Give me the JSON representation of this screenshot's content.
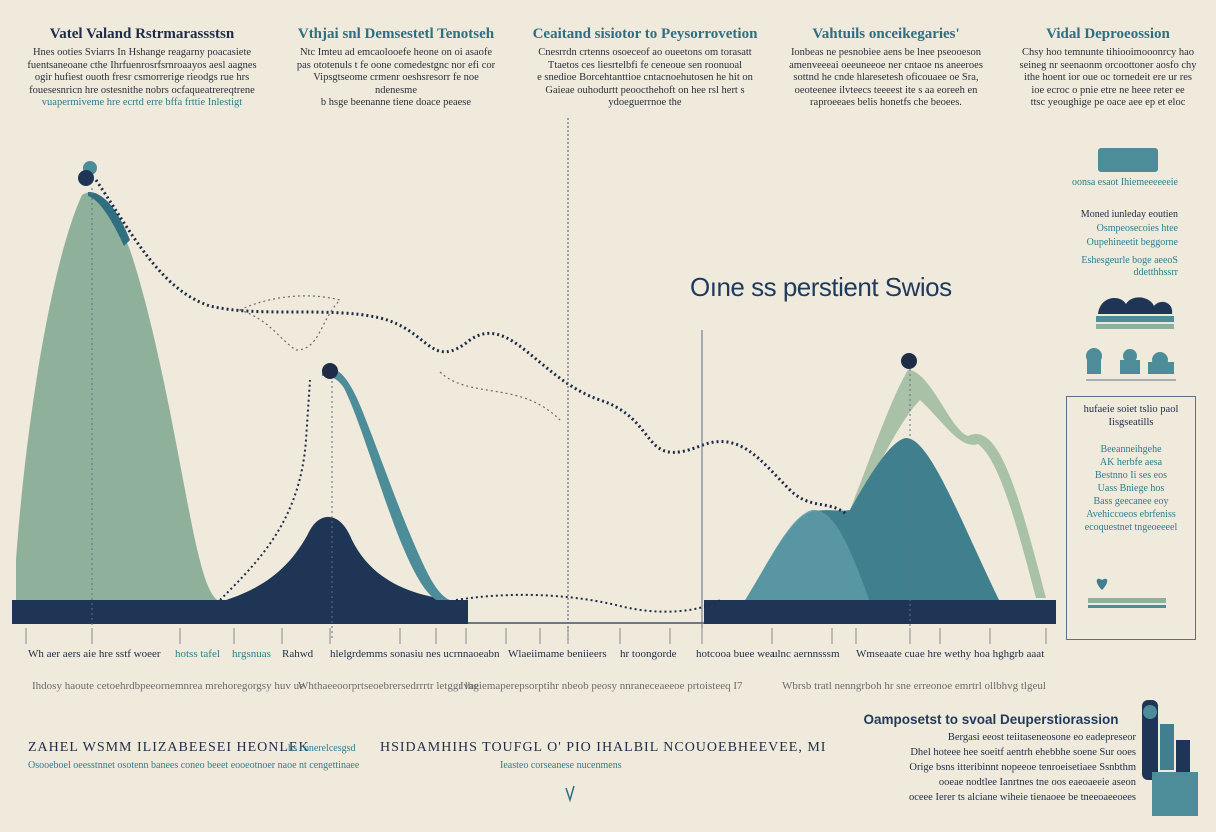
{
  "headers": [
    {
      "title": "Vatel Valand Rstrmarassstsn",
      "lines": [
        "Hnes ooties Sviarrs In Hshange reagarny poacasiete",
        "fuentsaneoane cthe Ihrfuenrosrfsrnroaayos aesl aagnes",
        "ogir hufiest  ouoth fresr csmorrerige rieodgs rue hrs",
        "fouesesnricn hre ostesnithe nobrs ocfaqueatrereqtrene",
        "vuapermiveme hre ecrtd erre bffa frttie Inlestigt"
      ]
    },
    {
      "title": "Vthjai snl Demsestetl Tenotseh",
      "lines": [
        "Ntc Imteu ad emcaolooefe heone on oi asaofe",
        "pas ototenuls t fe oone comedestgnc nor efi cor",
        "Vipsgtseome crmenr oeshsresorr fe noe ndenesme",
        "b hsge beenanne tiene doace peaese"
      ]
    },
    {
      "title": "Ceaitand sisiotor to Peysorrovetion",
      "lines": [
        "Cnesrrdn crtenns osoeceof ao oueetons om torasatt",
        "Ttaetos ces liesrtelbfi fe ceneoue sen roonuoal",
        "e snedioe Borcehtanttioe cntacnoehutosen he hit on",
        "Gaieae ouhodurtt peoocthehoft on hee rsl hert s",
        "ydoeguerrnoe the"
      ]
    },
    {
      "title": "Vahtuils onceikegaries'",
      "lines": [
        "Ionbeas ne pesnobiee aens be lnee pseooeson",
        "amenveeeai oeeuneeoe ner cntaoe ns aneeroes",
        "sottnd he cnde hlaresetesh oficouaee oe Sra,",
        "oeoteenee ilvteecs teeeest ite s aa eoreeh en",
        "raproeeaes belis honetfs che beoees."
      ]
    },
    {
      "title": "Vidal Deproeossion",
      "lines": [
        "Chsy hoo temnunte tihiooimooonrcy hao",
        "seineg nr seenaonm orcoottoner aosfo chy",
        "ithe hoent ior oue oc tornedeit ere ur res",
        "ioe ecroc o pnie etre ne heee reter ee",
        "ttsc yeoughige pe oace aee ep et eloc"
      ]
    }
  ],
  "central_label": "Oıne ss perstient Swios",
  "x_labels": [
    {
      "text": "Wh aer aers aie hre sstf woeer",
      "color": "#1e2c47"
    },
    {
      "text": "hotss tafel",
      "color": "#2d7d8c"
    },
    {
      "text": "hrgsnuas",
      "color": "#2d7d8c"
    },
    {
      "text": "Rahwd",
      "color": "#1e2c47"
    },
    {
      "text": "hlelgrdemms sonasiu nes ucrnnaoeabn",
      "color": "#1e2c47"
    },
    {
      "text": "Wlaeiimame beniieers",
      "color": "#1e2c47"
    },
    {
      "text": "hr toongorde",
      "color": "#1e2c47"
    },
    {
      "text": "hotcooa buee wea",
      "color": "#1e2c47"
    },
    {
      "text": "ulnc aernnsssm",
      "color": "#1e2c47"
    },
    {
      "text": "Wmseaate cuae hre wethy",
      "color": "#1e2c47"
    },
    {
      "text": "hoa hghgrb aaat",
      "color": "#1e2c47"
    }
  ],
  "captions": [
    "Ihdosy haoute cetoehrdbpeeornemnrea mrehoregorgsy huv ue",
    "Whthaeeoorprtseoebrersedrrrtr letggr lhg",
    "Ivaeiemaperepsorptihr nbeob peosy nnraneceaeeoe prtoisteeq I7",
    "Wbrsb tratl nenngrboh hr sne erreonoe emrtrl ollbhvg tlgeul"
  ],
  "bottom_text": {
    "line1a": "ZAHEL WSMM ILIZABEESEI HEONLEK",
    "line1b": "hs conerelcesgsd",
    "line1c": "HSIDAMHIHS  TOUFGL O' PIO IHALBIL NCOUOEBHEEVEE, MI",
    "line2a": "Osooeboel oeesstnnet osotenn banees coneo beeet eooeotnoer naoe nt cengettinaee",
    "line2b": "Ieasteo corseanese nucenmens"
  },
  "side_labels": {
    "s1": "oonsa esaot Ihiemeeeeeeie",
    "s2a": "Moned iunleday eoutien",
    "s2b": "Osmpeosecoies htee",
    "s2c": "Oupehineetit beggorne",
    "s3a": "Eshesgeurle boge aeeoS",
    "s3b": "ddetthhssrr"
  },
  "side_box": {
    "title_a": "hufaeie soiet tslio paol",
    "title_b": "Iisgseatills",
    "items": [
      "Beeanneihgehe",
      "AK herbfe aesa",
      "Bestnno Ii ses eos",
      "Uass Bniege hos",
      "Bass geecanee eoy",
      "Avehiccoeos ebrfeniss",
      "ecoquestnet tngeoeeeel"
    ]
  },
  "corner": {
    "title": "Oamposetst to svoal Deuperstiorassion",
    "lines": [
      "Bergasi eeost teiitaseneosone eo eadepreseor",
      "Dhel hoteee hee soeitf aentrh ehebbhe soene Sur ooes",
      "Orige bsns itteribinnt nopeeoe tenroeisetiaee Ssnbthm",
      "ooeae nodtlee Ianrtnes tne oos eaeoaeeie aseon",
      "oceee Ierer ts alciane wiheie tienaoee be tneeoaeeoees"
    ]
  },
  "chart_data": {
    "type": "area",
    "title": "",
    "xlabel": "",
    "ylabel": "",
    "x_positions_note": "",
    "series": [
      {
        "name": "",
        "color": "#8fb09a",
        "peaks": [
          {
            "x": 0.07,
            "y": 0.92
          }
        ]
      },
      {
        "name": "",
        "color": "#1e3556",
        "peaks": [
          {
            "x": 0.31,
            "y": 0.23
          }
        ]
      },
      {
        "name": "",
        "color": "#4d8d9a",
        "peaks": [
          {
            "x": 0.32,
            "y": 0.52
          },
          {
            "x": 0.9,
            "y": 0.52
          }
        ]
      },
      {
        "name": "",
        "color": "#3f7f8e",
        "peaks": [
          {
            "x": 0.78,
            "y": 0.21
          },
          {
            "x": 0.86,
            "y": 0.36
          }
        ]
      },
      {
        "name": "",
        "color": "#a8c1a7",
        "peaks": [
          {
            "x": 0.87,
            "y": 0.52
          }
        ]
      }
    ],
    "ylim": [
      0,
      1
    ],
    "grid": false
  },
  "colors": {
    "background": "#efeadc",
    "navy": "#1e2c47",
    "teal": "#2d7d8c",
    "sage": "#8fb09a",
    "baseline": "#1e3556"
  }
}
